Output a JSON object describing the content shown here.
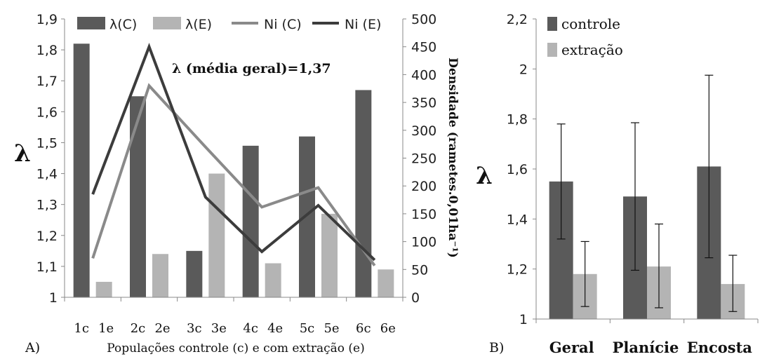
{
  "chart_data": [
    {
      "type": "bar",
      "panel_label": "A)",
      "title": "",
      "annotation": "λ (média geral)=1,37",
      "xlabel": "Populações controle (c) e com extração (e)",
      "ylabel": "λ",
      "y2label": "Densidade (rametes.0,01ha⁻¹)",
      "ylim": [
        1,
        1.9
      ],
      "y2lim": [
        0,
        500
      ],
      "yticks": [
        "1",
        "1,1",
        "1,2",
        "1,3",
        "1,4",
        "1,5",
        "1,6",
        "1,7",
        "1,8",
        "1,9"
      ],
      "y2ticks": [
        "0",
        "50",
        "100",
        "150",
        "200",
        "250",
        "300",
        "350",
        "400",
        "450",
        "500"
      ],
      "legend_position": "top",
      "grid": false,
      "categories": [
        "1",
        "2",
        "3",
        "4",
        "5",
        "6"
      ],
      "tick_labels": [
        [
          "1c",
          "1e"
        ],
        [
          "2c",
          "2e"
        ],
        [
          "3c",
          "3e"
        ],
        [
          "4c",
          "4e"
        ],
        [
          "5c",
          "5e"
        ],
        [
          "6c",
          "6e"
        ]
      ],
      "series": [
        {
          "name": "λ(C)",
          "kind": "bar",
          "axis": "left",
          "color": "#5a5a5a",
          "values": [
            1.82,
            1.65,
            1.15,
            1.49,
            1.52,
            1.67
          ]
        },
        {
          "name": "λ(E)",
          "kind": "bar",
          "axis": "left",
          "color": "#b4b4b4",
          "values": [
            1.05,
            1.14,
            1.4,
            1.11,
            1.27,
            1.09
          ]
        },
        {
          "name": "Ni (C)",
          "kind": "line",
          "axis": "right",
          "color": "#8a8a8a",
          "values": [
            70,
            380,
            270,
            162,
            197,
            57
          ]
        },
        {
          "name": "Ni (E)",
          "kind": "line",
          "axis": "right",
          "color": "#3c3c3c",
          "values": [
            185,
            450,
            180,
            82,
            165,
            67
          ]
        }
      ]
    },
    {
      "type": "bar",
      "panel_label": "B)",
      "title": "",
      "xlabel": "",
      "ylabel": "λ",
      "ylim": [
        1,
        2.2
      ],
      "yticks": [
        "1",
        "1,2",
        "1,4",
        "1,6",
        "1,8",
        "2",
        "2,2"
      ],
      "legend_position": "top-left",
      "grid": false,
      "categories": [
        "Geral",
        "Planície",
        "Encosta"
      ],
      "series": [
        {
          "name": "controle",
          "color": "#5a5a5a",
          "values": [
            1.55,
            1.49,
            1.61
          ],
          "error_low": [
            1.32,
            1.195,
            1.245
          ],
          "error_high": [
            1.78,
            1.785,
            1.975
          ]
        },
        {
          "name": "extração",
          "color": "#b4b4b4",
          "values": [
            1.18,
            1.21,
            1.14
          ],
          "error_low": [
            1.05,
            1.045,
            1.03
          ],
          "error_high": [
            1.31,
            1.38,
            1.255
          ]
        }
      ]
    }
  ]
}
